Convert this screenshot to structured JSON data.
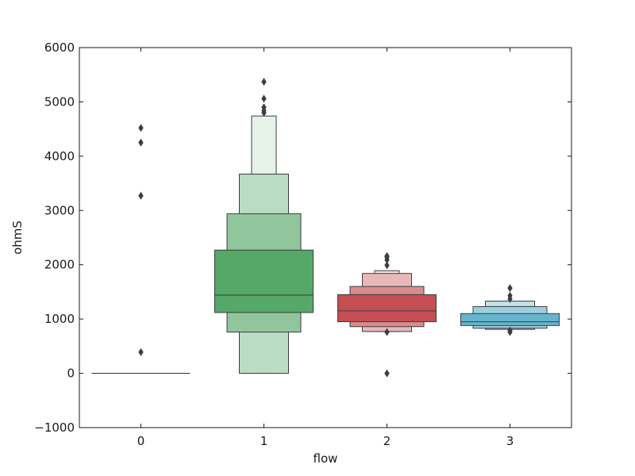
{
  "chart_data": {
    "type": "boxen",
    "xlabel": "flow",
    "ylabel": "ohmS",
    "ylim": [
      -1000,
      6000
    ],
    "yticks": [
      -1000,
      0,
      1000,
      2000,
      3000,
      4000,
      5000,
      6000
    ],
    "ytick_labels": [
      "−1000",
      "0",
      "1000",
      "2000",
      "3000",
      "4000",
      "5000",
      "6000"
    ],
    "categories": [
      "0",
      "1",
      "2",
      "3"
    ],
    "grid": false,
    "series": [
      {
        "category": "0",
        "color": "#4c72b0",
        "median": 0,
        "boxes": [],
        "flat_line": 0,
        "outliers": [
          4520,
          4250,
          3270,
          390
        ]
      },
      {
        "category": "1",
        "color": "#55a868",
        "median": 1440,
        "boxes": [
          {
            "low": 1120,
            "high": 2270,
            "shade": 0
          },
          {
            "low": 760,
            "high": 2940,
            "shade": 1
          },
          {
            "low": 0,
            "high": 3670,
            "shade": 2
          },
          {
            "low": 0,
            "high": 4740,
            "shade": 3
          }
        ],
        "outliers": [
          4800,
          4840,
          4900,
          5060,
          5370
        ]
      },
      {
        "category": "2",
        "color": "#c44e52",
        "median": 1150,
        "boxes": [
          {
            "low": 950,
            "high": 1450,
            "shade": 0
          },
          {
            "low": 860,
            "high": 1600,
            "shade": 1
          },
          {
            "low": 770,
            "high": 1840,
            "shade": 2
          },
          {
            "low": 770,
            "high": 1890,
            "shade": 3
          }
        ],
        "outliers": [
          760,
          0,
          1990,
          2090,
          2140,
          2160
        ]
      },
      {
        "category": "3",
        "color": "#64b5cd",
        "median": 950,
        "boxes": [
          {
            "low": 880,
            "high": 1100,
            "shade": 0
          },
          {
            "low": 830,
            "high": 1230,
            "shade": 1
          },
          {
            "low": 810,
            "high": 1330,
            "shade": 2
          }
        ],
        "outliers": [
          760,
          790,
          1370,
          1430,
          1570
        ]
      }
    ]
  }
}
